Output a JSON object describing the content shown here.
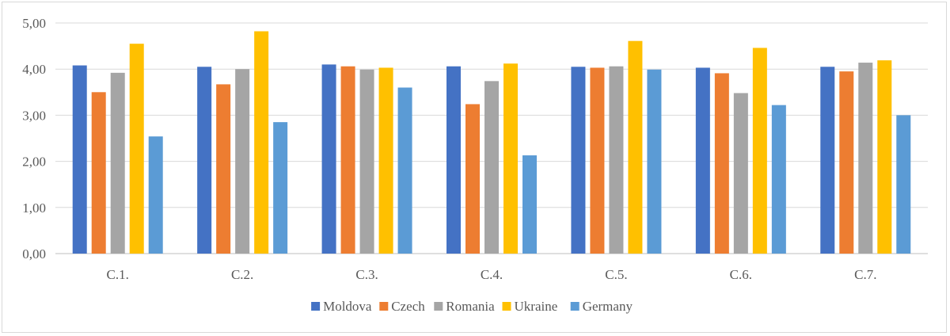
{
  "chart_data": {
    "type": "bar",
    "categories": [
      "C.1.",
      "C.2.",
      "C.3.",
      "C.4.",
      "C.5.",
      "C.6.",
      "C.7."
    ],
    "series": [
      {
        "name": "Moldova",
        "color": "#4472C4",
        "values": [
          4.08,
          4.05,
          4.1,
          4.06,
          4.05,
          4.03,
          4.05
        ]
      },
      {
        "name": "Czech",
        "color": "#ED7D31",
        "values": [
          3.5,
          3.67,
          4.06,
          3.24,
          4.03,
          3.91,
          3.95
        ]
      },
      {
        "name": "Romania",
        "color": "#A5A5A5",
        "values": [
          3.92,
          4.0,
          3.99,
          3.74,
          4.06,
          3.48,
          4.14
        ]
      },
      {
        "name": "Ukraine",
        "color": "#FFC000",
        "values": [
          4.55,
          4.82,
          4.03,
          4.12,
          4.61,
          4.46,
          4.19
        ]
      },
      {
        "name": "Germany",
        "color": "#5B9BD5",
        "values": [
          2.54,
          2.85,
          3.6,
          2.13,
          3.99,
          3.22,
          3.0
        ]
      }
    ],
    "yticks": [
      "0,00",
      "1,00",
      "2,00",
      "3,00",
      "4,00",
      "5,00"
    ],
    "ylim": [
      0,
      5
    ],
    "grid": true,
    "legend_position": "bottom",
    "title": "",
    "xlabel": "",
    "ylabel": ""
  }
}
